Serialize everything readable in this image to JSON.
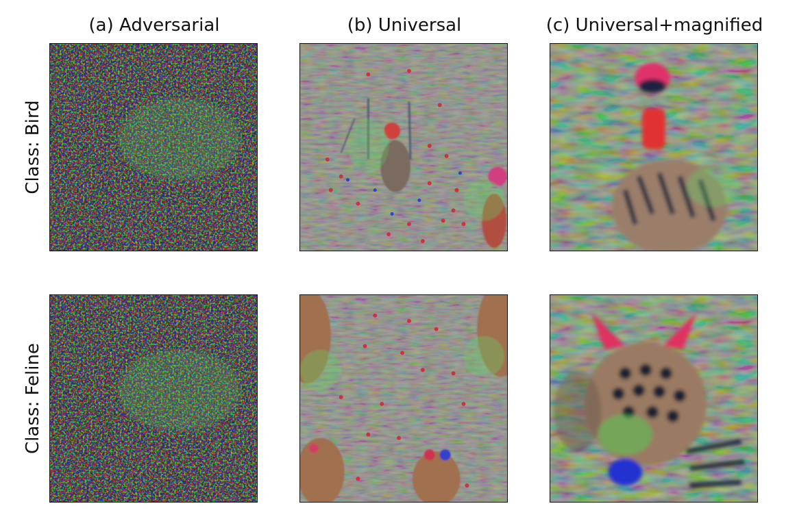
{
  "columns": [
    {
      "title": "(a) Adversarial"
    },
    {
      "title": "(b) Universal"
    },
    {
      "title": "(c) Universal+magnified"
    }
  ],
  "rows": [
    {
      "label": "Class: Bird"
    },
    {
      "label": "Class: Feline"
    }
  ]
}
